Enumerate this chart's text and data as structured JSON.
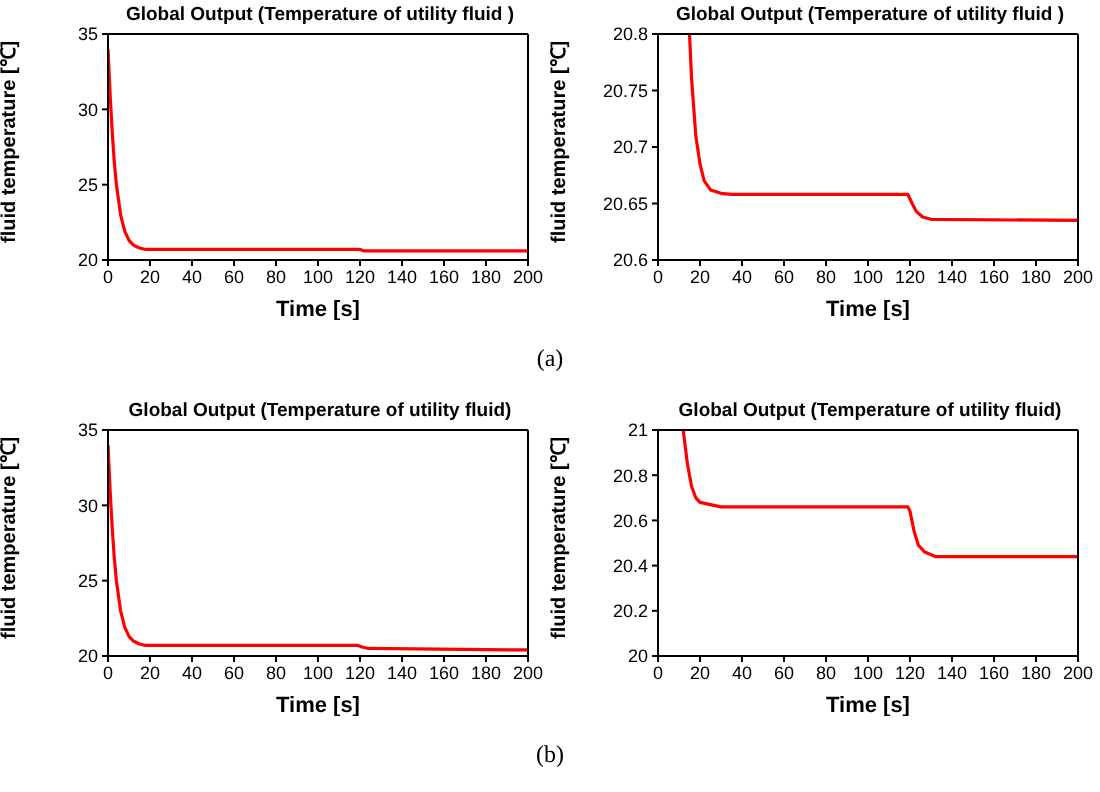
{
  "chart_data": [
    {
      "type": "line",
      "title": "Global Output (Temperature of utility fluid )",
      "xlabel": "Time [s]",
      "ylabel": "fluid temperature [℃]",
      "annotations": [
        "(a)"
      ],
      "xlim": [
        0,
        200
      ],
      "xticks": [
        0,
        20,
        40,
        60,
        80,
        100,
        120,
        140,
        160,
        180,
        200
      ],
      "ylim": [
        20,
        35
      ],
      "yticks": [
        20,
        25,
        30,
        35
      ],
      "series": [
        {
          "color": "#ff0000",
          "x": [
            0,
            1,
            2,
            3,
            4,
            6,
            8,
            10,
            12,
            15,
            18,
            25,
            120,
            122,
            200
          ],
          "values": [
            34,
            31,
            28.5,
            26.5,
            25,
            23,
            21.9,
            21.3,
            21.0,
            20.8,
            20.7,
            20.7,
            20.7,
            20.6,
            20.6
          ]
        }
      ]
    },
    {
      "type": "line",
      "title": "Global Output (Temperature of utility fluid )",
      "xlabel": "Time [s]",
      "ylabel": "fluid temperature [℃]",
      "xlim": [
        0,
        200
      ],
      "xticks": [
        0,
        20,
        40,
        60,
        80,
        100,
        120,
        140,
        160,
        180,
        200
      ],
      "ylim": [
        20.6,
        20.8
      ],
      "yticks": [
        20.6,
        20.65,
        20.7,
        20.75,
        20.8
      ],
      "series": [
        {
          "color": "#ff0000",
          "x": [
            15,
            16,
            18,
            20,
            22,
            25,
            30,
            35,
            119,
            121,
            123,
            126,
            130,
            200
          ],
          "values": [
            20.8,
            20.76,
            20.71,
            20.685,
            20.67,
            20.662,
            20.659,
            20.658,
            20.658,
            20.65,
            20.643,
            20.638,
            20.636,
            20.635
          ]
        }
      ]
    },
    {
      "type": "line",
      "title": "Global Output (Temperature of utility fluid)",
      "xlabel": "Time [s]",
      "ylabel": "fluid temperature [℃]",
      "annotations": [
        "(b)"
      ],
      "xlim": [
        0,
        200
      ],
      "xticks": [
        0,
        20,
        40,
        60,
        80,
        100,
        120,
        140,
        160,
        180,
        200
      ],
      "ylim": [
        20,
        35
      ],
      "yticks": [
        20,
        25,
        30,
        35
      ],
      "series": [
        {
          "color": "#ff0000",
          "x": [
            0,
            1,
            2,
            3,
            4,
            6,
            8,
            10,
            12,
            15,
            18,
            25,
            119,
            121,
            124,
            200
          ],
          "values": [
            34,
            31,
            28.5,
            26.5,
            25,
            23,
            21.9,
            21.3,
            21.0,
            20.8,
            20.7,
            20.7,
            20.7,
            20.6,
            20.5,
            20.4
          ]
        }
      ]
    },
    {
      "type": "line",
      "title": "Global Output (Temperature of utility fluid)",
      "xlabel": "Time [s]",
      "ylabel": "fluid temperature [℃]",
      "xlim": [
        0,
        200
      ],
      "xticks": [
        0,
        20,
        40,
        60,
        80,
        100,
        120,
        140,
        160,
        180,
        200
      ],
      "ylim": [
        20,
        21
      ],
      "yticks": [
        20,
        20.2,
        20.4,
        20.6,
        20.8,
        21
      ],
      "series": [
        {
          "color": "#ff0000",
          "x": [
            12,
            14,
            16,
            18,
            20,
            25,
            30,
            119,
            120,
            122,
            124,
            127,
            132,
            200
          ],
          "values": [
            21,
            20.85,
            20.75,
            20.7,
            20.68,
            20.67,
            20.66,
            20.66,
            20.64,
            20.55,
            20.49,
            20.46,
            20.44,
            20.44
          ]
        }
      ]
    }
  ]
}
